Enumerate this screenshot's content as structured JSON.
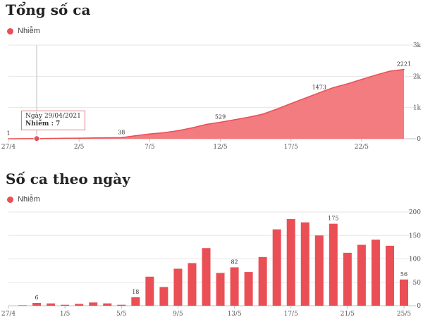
{
  "colors": {
    "accent": "#ea4f55",
    "area": "#f27c80",
    "grid": "#e6e6e6",
    "axis": "#c0c0c0"
  },
  "cumulative": {
    "title": "Tổng số ca",
    "legend": "Nhiễm",
    "tooltip": {
      "date": "Ngày 29/04/2021",
      "series": "Nhiễm",
      "value": "7"
    },
    "chart_data": {
      "type": "area",
      "title": "Tổng số ca",
      "x": [
        "27/4",
        "28/4",
        "29/4",
        "30/4",
        "1/5",
        "2/5",
        "3/5",
        "4/5",
        "5/5",
        "6/5",
        "7/5",
        "8/5",
        "9/5",
        "10/5",
        "11/5",
        "12/5",
        "13/5",
        "14/5",
        "15/5",
        "16/5",
        "17/5",
        "18/5",
        "19/5",
        "20/5",
        "21/5",
        "22/5",
        "23/5",
        "24/5",
        "25/5"
      ],
      "values": [
        1,
        4,
        7,
        12,
        17,
        20,
        28,
        33,
        38,
        100,
        155,
        195,
        260,
        350,
        460,
        529,
        610,
        690,
        790,
        950,
        1130,
        1300,
        1473,
        1640,
        1760,
        1900,
        2040,
        2165,
        2221
      ],
      "x_ticks": [
        "27/4",
        "2/5",
        "7/5",
        "12/5",
        "17/5",
        "22/5"
      ],
      "y_ticks": [
        "0",
        "1k",
        "2k",
        "3k"
      ],
      "ylim": [
        0,
        3000
      ],
      "point_labels": [
        {
          "i": 0,
          "text": "1"
        },
        {
          "i": 8,
          "text": "38"
        },
        {
          "i": 15,
          "text": "529"
        },
        {
          "i": 22,
          "text": "1473"
        },
        {
          "i": 28,
          "text": "2221"
        }
      ],
      "highlight_index": 2,
      "grid": true
    }
  },
  "daily": {
    "title": "Số ca theo ngày",
    "legend": "Nhiễm",
    "chart_data": {
      "type": "bar",
      "title": "Số ca theo ngày",
      "categories": [
        "27/4",
        "28/4",
        "29/4",
        "30/4",
        "1/5",
        "2/5",
        "3/5",
        "4/5",
        "5/5",
        "6/5",
        "7/5",
        "8/5",
        "9/5",
        "10/5",
        "11/5",
        "12/5",
        "13/5",
        "14/5",
        "15/5",
        "16/5",
        "17/5",
        "18/5",
        "19/5",
        "20/5",
        "21/5",
        "22/5",
        "23/5",
        "24/5",
        "25/5"
      ],
      "values": [
        0,
        1,
        6,
        5,
        2,
        4,
        7,
        5,
        2,
        18,
        62,
        40,
        79,
        91,
        123,
        70,
        82,
        72,
        104,
        163,
        185,
        178,
        150,
        175,
        113,
        130,
        141,
        128,
        56
      ],
      "x_ticks": [
        "27/4",
        "1/5",
        "5/5",
        "9/5",
        "13/5",
        "17/5",
        "21/5",
        "25/5"
      ],
      "y_ticks": [
        "0",
        "50",
        "100",
        "150",
        "200"
      ],
      "ylim": [
        0,
        200
      ],
      "bar_labels": [
        {
          "i": 2,
          "text": "6"
        },
        {
          "i": 9,
          "text": "18"
        },
        {
          "i": 16,
          "text": "82"
        },
        {
          "i": 23,
          "text": "175"
        },
        {
          "i": 28,
          "text": "56"
        }
      ],
      "grid": true
    }
  }
}
